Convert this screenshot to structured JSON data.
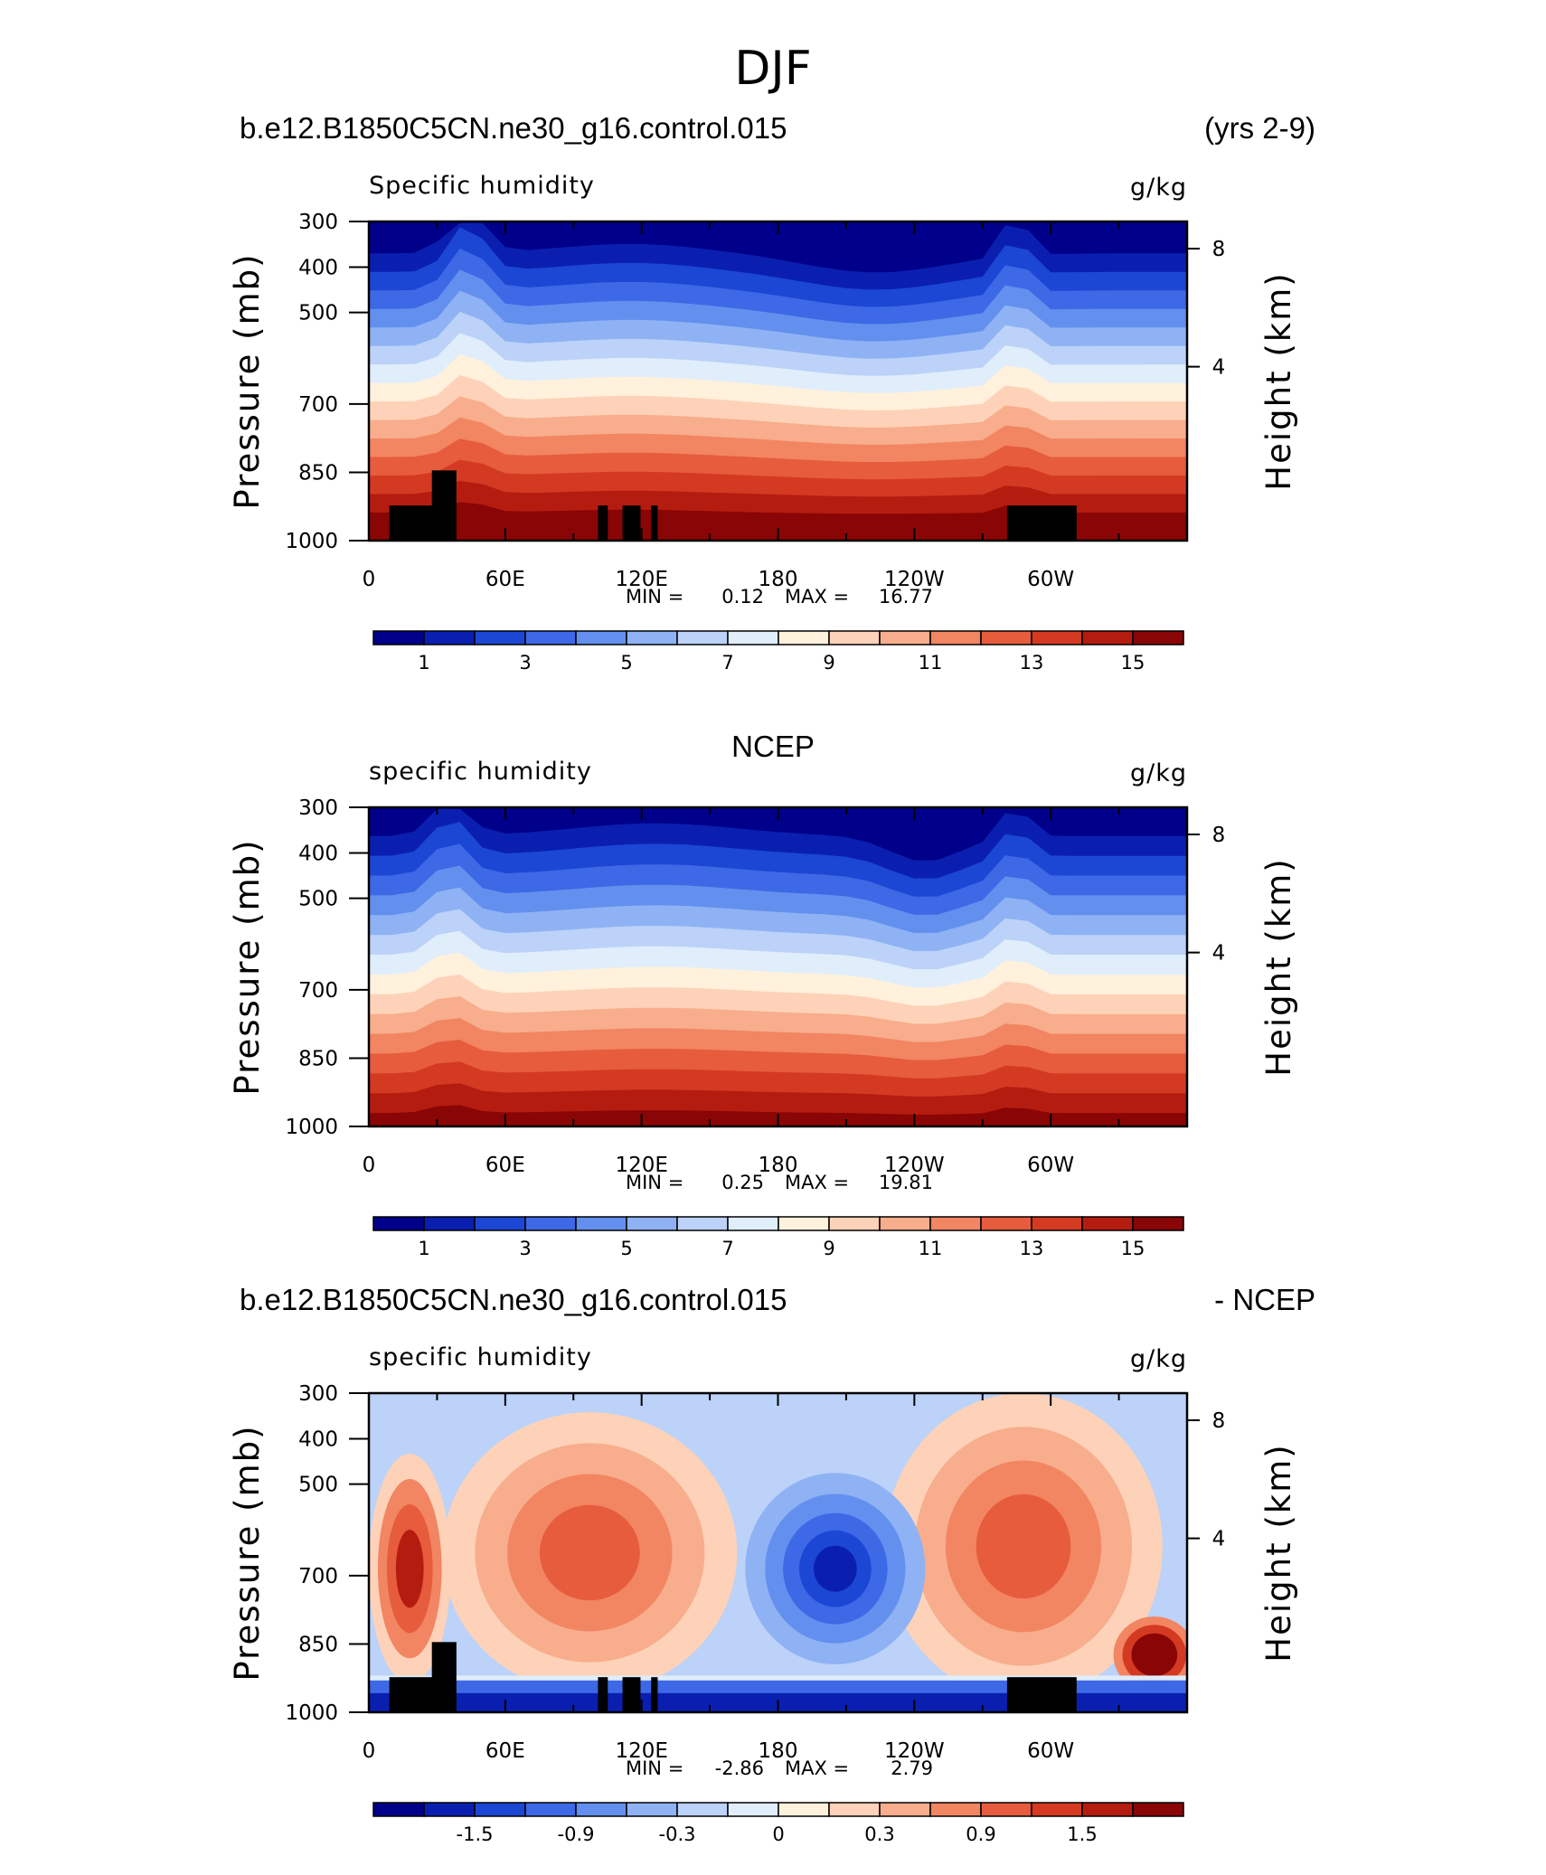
{
  "figure_title": "DJF",
  "chart_data": [
    {
      "type": "heatmap",
      "case_label": "b.e12.B1850C5CN.ne30_g16.control.015",
      "right_label": "(yrs 2-9)",
      "variable": "Specific humidity",
      "units": "g/kg",
      "ylabel": "Pressure (mb)",
      "ylabel_right": "Height (km)",
      "x_ticks": [
        "0",
        "60E",
        "120E",
        "180",
        "120W",
        "60W"
      ],
      "y_ticks": [
        "300",
        "400",
        "500",
        "700",
        "850",
        "1000"
      ],
      "y_ticks_right": [
        "8",
        "4"
      ],
      "ylim": [
        1000,
        300
      ],
      "min_label": "MIN =",
      "min": "0.12",
      "max_label": "MAX =",
      "max": "16.77",
      "colorbar_labels": [
        "1",
        "3",
        "5",
        "7",
        "9",
        "11",
        "13",
        "15"
      ],
      "levels": [
        0.5,
        1,
        2,
        3,
        4,
        5,
        6,
        7,
        8,
        9,
        10,
        11,
        12,
        13,
        14,
        15
      ],
      "palette": "BlueWhiteOrangeRed",
      "land_mask": true
    },
    {
      "type": "heatmap",
      "case_label": "NCEP",
      "variable": "specific humidity",
      "units": "g/kg",
      "ylabel": "Pressure (mb)",
      "ylabel_right": "Height (km)",
      "x_ticks": [
        "0",
        "60E",
        "120E",
        "180",
        "120W",
        "60W"
      ],
      "y_ticks": [
        "300",
        "400",
        "500",
        "700",
        "850",
        "1000"
      ],
      "y_ticks_right": [
        "8",
        "4"
      ],
      "ylim": [
        1000,
        300
      ],
      "min_label": "MIN =",
      "min": "0.25",
      "max_label": "MAX =",
      "max": "19.81",
      "colorbar_labels": [
        "1",
        "3",
        "5",
        "7",
        "9",
        "11",
        "13",
        "15"
      ],
      "levels": [
        0.5,
        1,
        2,
        3,
        4,
        5,
        6,
        7,
        8,
        9,
        10,
        11,
        12,
        13,
        14,
        15
      ],
      "palette": "BlueWhiteOrangeRed",
      "land_mask": false
    },
    {
      "type": "heatmap",
      "case_label": "b.e12.B1850C5CN.ne30_g16.control.015",
      "right_label": "- NCEP",
      "variable": "specific humidity",
      "units": "g/kg",
      "ylabel": "Pressure (mb)",
      "ylabel_right": "Height (km)",
      "x_ticks": [
        "0",
        "60E",
        "120E",
        "180",
        "120W",
        "60W"
      ],
      "y_ticks": [
        "300",
        "400",
        "500",
        "700",
        "850",
        "1000"
      ],
      "y_ticks_right": [
        "8",
        "4"
      ],
      "ylim": [
        1000,
        300
      ],
      "min_label": "MIN =",
      "min": "-2.86",
      "max_label": "MAX =",
      "max": "2.79",
      "colorbar_labels": [
        "-1.5",
        "-0.9",
        "-0.3",
        "0",
        "0.3",
        "0.9",
        "1.5"
      ],
      "levels": [
        -2.1,
        -1.8,
        -1.5,
        -1.2,
        -0.9,
        -0.6,
        -0.3,
        0,
        0.3,
        0.6,
        0.9,
        1.2,
        1.5,
        1.8,
        2.1
      ],
      "palette": "BlueWhiteOrangeRed",
      "land_mask": true
    }
  ],
  "palette_colors": [
    "#00008a",
    "#0a1fb0",
    "#1c46d4",
    "#3d68e6",
    "#6390ee",
    "#8fb2f4",
    "#bcd2f8",
    "#e0edfb",
    "#fff1dc",
    "#fdd2b8",
    "#f8ad8c",
    "#f28562",
    "#e65c3c",
    "#d43a22",
    "#b51c10",
    "#8a0505"
  ]
}
